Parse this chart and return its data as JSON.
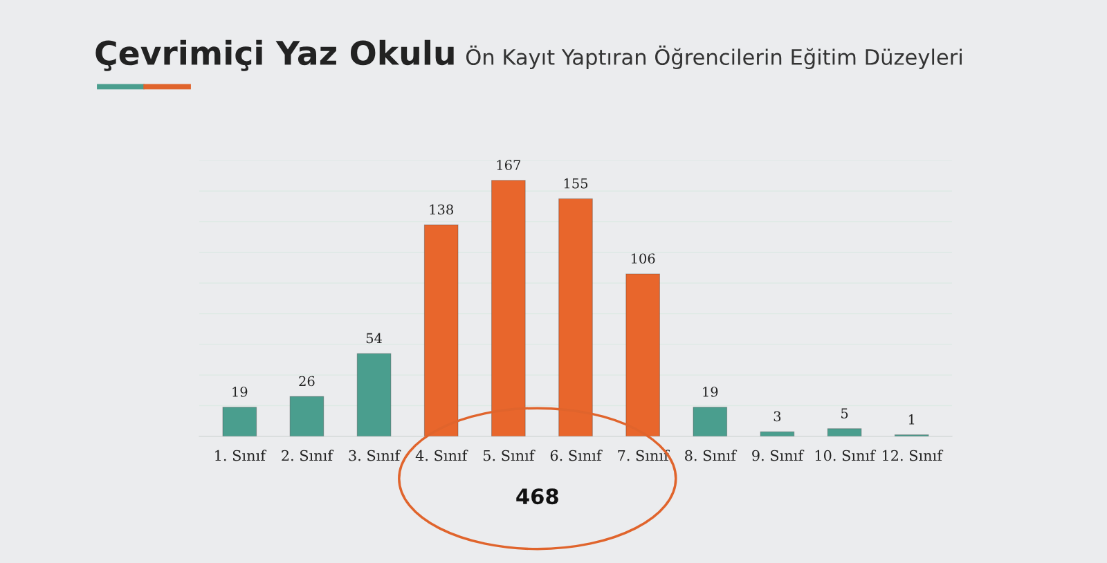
{
  "chart_data": {
    "type": "bar",
    "title": "Çevrimiçi Yaz Okulu",
    "subtitle": "Ön Kayıt Yaptıran Öğrencilerin Eğitim Düzeyleri",
    "categories": [
      "1. Sınıf",
      "2. Sınıf",
      "3. Sınıf",
      "4. Sınıf",
      "5. Sınıf",
      "6. Sınıf",
      "7. Sınıf",
      "8. Sınıf",
      "9. Sınıf",
      "10. Sınıf",
      "12. Sınıf"
    ],
    "values": [
      19,
      26,
      54,
      138,
      167,
      155,
      106,
      19,
      3,
      5,
      1
    ],
    "colors": [
      "#4a9e8e",
      "#4a9e8e",
      "#4a9e8e",
      "#e8662c",
      "#e8662c",
      "#e8662c",
      "#e8662c",
      "#4a9e8e",
      "#4a9e8e",
      "#4a9e8e",
      "#4a9e8e"
    ],
    "data_labels": true,
    "ylim": [
      0,
      180
    ],
    "yticks": [
      {
        "value": 0,
        "label": null
      },
      {
        "value": 20,
        "label": null
      },
      {
        "value": 40,
        "label": null
      },
      {
        "value": 60,
        "label": null
      },
      {
        "value": 80,
        "label": null
      },
      {
        "value": 100,
        "label": null
      },
      {
        "value": 120,
        "label": null
      },
      {
        "value": 140,
        "label": null
      },
      {
        "value": 160,
        "label": null
      },
      {
        "value": 180,
        "label": null
      }
    ],
    "grid": "y",
    "tick_labels": "x",
    "legend": false,
    "annotations": [
      "468"
    ]
  }
}
